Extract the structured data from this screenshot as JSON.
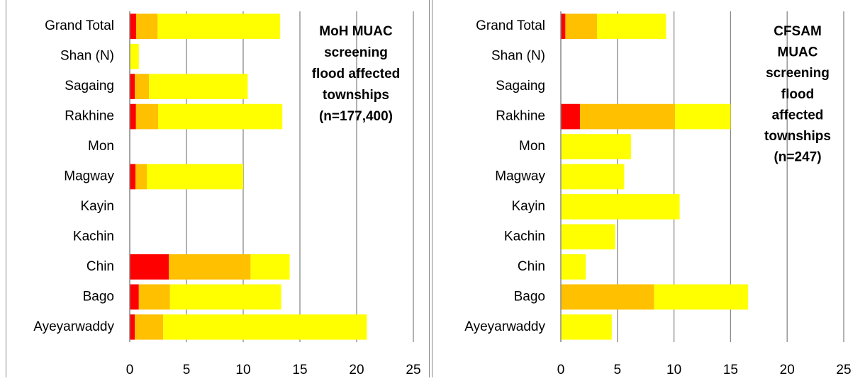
{
  "chart_data": [
    {
      "type": "bar",
      "orientation": "horizontal",
      "stacked": true,
      "categories": [
        "Grand Total",
        "Shan (N)",
        "Sagaing",
        "Rakhine",
        "Mon",
        "Magway",
        "Kayin",
        "Kachin",
        "Chin",
        "Bago",
        "Ayeyarwaddy"
      ],
      "series": [
        {
          "color": "#ff0000",
          "values": [
            0.56,
            0,
            0.45,
            0.55,
            0,
            0.5,
            0,
            0,
            3.45,
            0.8,
            0.45
          ]
        },
        {
          "color": "#ffc000",
          "values": [
            1.9,
            0,
            1.25,
            1.95,
            0,
            1.0,
            0,
            0,
            7.2,
            2.75,
            2.5
          ]
        },
        {
          "color": "#ffff00",
          "values": [
            10.8,
            0.8,
            8.7,
            10.95,
            0,
            8.5,
            0,
            0,
            3.45,
            9.8,
            17.95
          ]
        }
      ],
      "xlim": [
        0,
        25
      ],
      "xticks": [
        0,
        5,
        10,
        15,
        20,
        25
      ],
      "grid": true,
      "annotation": [
        "MoH MUAC",
        "screening",
        "flood affected",
        "townships",
        "(n=177,400)"
      ]
    },
    {
      "type": "bar",
      "orientation": "horizontal",
      "stacked": true,
      "categories": [
        "Grand Total",
        "Shan (N)",
        "Sagaing",
        "Rakhine",
        "Mon",
        "Magway",
        "Kayin",
        "Kachin",
        "Chin",
        "Bago",
        "Ayeyarwaddy"
      ],
      "series": [
        {
          "color": "#ff0000",
          "values": [
            0.4,
            0,
            0,
            1.7,
            0,
            0,
            0,
            0,
            0,
            0,
            0
          ]
        },
        {
          "color": "#ffc000",
          "values": [
            2.8,
            0,
            0,
            8.4,
            0,
            0,
            0,
            0,
            0,
            8.25,
            0
          ]
        },
        {
          "color": "#ffff00",
          "values": [
            6.1,
            0,
            0,
            4.9,
            6.2,
            5.6,
            10.5,
            4.8,
            2.2,
            8.3,
            4.5
          ]
        }
      ],
      "xlim": [
        0,
        25
      ],
      "xticks": [
        0,
        5,
        10,
        15,
        20,
        25
      ],
      "grid": true,
      "annotation": [
        "CFSAM",
        "MUAC",
        "screening",
        "flood",
        "affected",
        "townships",
        "(n=247)"
      ]
    }
  ]
}
